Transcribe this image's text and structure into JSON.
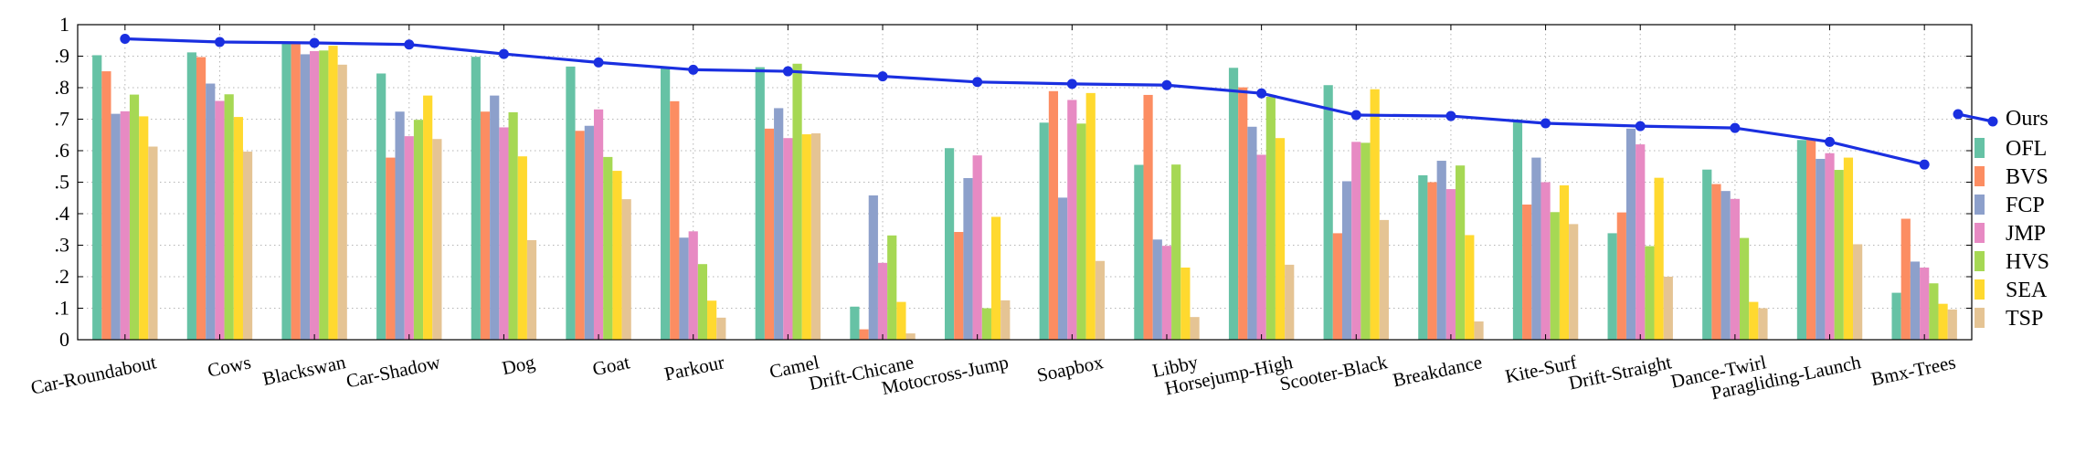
{
  "chart_data": {
    "type": "bar",
    "title": "",
    "xlabel": "",
    "ylabel": "",
    "ylim": [
      0,
      1
    ],
    "yticks": [
      0,
      0.1,
      0.2,
      0.3,
      0.4,
      0.5,
      0.6,
      0.7,
      0.8,
      0.9,
      1
    ],
    "ytick_labels": [
      "0",
      ".1",
      ".2",
      ".3",
      ".4",
      ".5",
      ".6",
      ".7",
      ".8",
      ".9",
      "1"
    ],
    "grid": true,
    "legend_position": "right",
    "categories": [
      "Car-Roundabout",
      "Cows",
      "Blackswan",
      "Car-Shadow",
      "Dog",
      "Goat",
      "Parkour",
      "Camel",
      "Drift-Chicane",
      "Motocross-Jump",
      "Soapbox",
      "Libby",
      "Horsejump-High",
      "Scooter-Black",
      "Breakdance",
      "Kite-Surf",
      "Drift-Straight",
      "Dance-Twirl",
      "Paragliding-Launch",
      "Bmx-Trees"
    ],
    "line_series": {
      "name": "Ours",
      "color": "#1a2fe0",
      "values": [
        0.955,
        0.945,
        0.942,
        0.937,
        0.907,
        0.88,
        0.857,
        0.852,
        0.836,
        0.818,
        0.812,
        0.808,
        0.782,
        0.713,
        0.71,
        0.687,
        0.678,
        0.672,
        0.628,
        0.556
      ]
    },
    "series": [
      {
        "name": "OFL",
        "color": "#66c2a5",
        "values": [
          0.903,
          0.912,
          0.942,
          0.845,
          0.898,
          0.867,
          0.862,
          0.865,
          0.105,
          0.608,
          0.689,
          0.555,
          0.863,
          0.808,
          0.522,
          0.699,
          0.338,
          0.54,
          0.634,
          0.149
        ]
      },
      {
        "name": "BVS",
        "color": "#fc8d62",
        "values": [
          0.852,
          0.897,
          0.943,
          0.578,
          0.724,
          0.663,
          0.757,
          0.67,
          0.033,
          0.342,
          0.789,
          0.777,
          0.801,
          0.338,
          0.5,
          0.429,
          0.404,
          0.494,
          0.638,
          0.384
        ]
      },
      {
        "name": "FCP",
        "color": "#8da0cb",
        "values": [
          0.717,
          0.813,
          0.906,
          0.724,
          0.775,
          0.679,
          0.324,
          0.735,
          0.458,
          0.513,
          0.451,
          0.318,
          0.676,
          0.503,
          0.568,
          0.578,
          0.67,
          0.472,
          0.574,
          0.248
        ]
      },
      {
        "name": "JMP",
        "color": "#e78ac3",
        "values": [
          0.725,
          0.758,
          0.916,
          0.646,
          0.674,
          0.731,
          0.344,
          0.64,
          0.244,
          0.585,
          0.761,
          0.298,
          0.587,
          0.628,
          0.478,
          0.5,
          0.62,
          0.447,
          0.592,
          0.229
        ]
      },
      {
        "name": "HVS",
        "color": "#a6d854",
        "values": [
          0.778,
          0.779,
          0.918,
          0.698,
          0.722,
          0.58,
          0.24,
          0.876,
          0.331,
          0.1,
          0.686,
          0.556,
          0.771,
          0.625,
          0.553,
          0.405,
          0.297,
          0.323,
          0.539,
          0.179
        ]
      },
      {
        "name": "SEA",
        "color": "#ffd92f",
        "values": [
          0.709,
          0.707,
          0.933,
          0.775,
          0.582,
          0.536,
          0.124,
          0.652,
          0.12,
          0.39,
          0.783,
          0.229,
          0.64,
          0.795,
          0.332,
          0.49,
          0.514,
          0.12,
          0.578,
          0.114
        ]
      },
      {
        "name": "TSP",
        "color": "#e5c494",
        "values": [
          0.613,
          0.597,
          0.873,
          0.637,
          0.316,
          0.446,
          0.07,
          0.655,
          0.02,
          0.125,
          0.25,
          0.072,
          0.238,
          0.38,
          0.058,
          0.367,
          0.2,
          0.1,
          0.303,
          0.096
        ]
      }
    ]
  }
}
